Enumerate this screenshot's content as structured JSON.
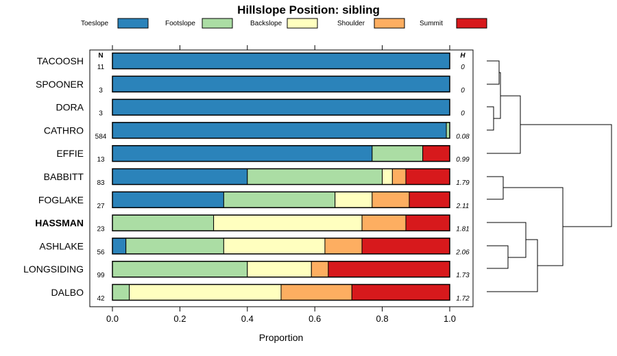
{
  "chart_data": {
    "type": "bar",
    "orientation": "horizontal",
    "stacked": true,
    "title": "Hillslope Position: sibling",
    "xlabel": "Proportion",
    "xlim": [
      0,
      1
    ],
    "xticks": [
      "0.0",
      "0.2",
      "0.4",
      "0.6",
      "0.8",
      "1.0"
    ],
    "xtick_values": [
      0,
      0.2,
      0.4,
      0.6,
      0.8,
      1.0
    ],
    "n_header": "N",
    "h_header": "H",
    "legend": [
      {
        "name": "Toeslope",
        "color": "#2b83ba"
      },
      {
        "name": "Footslope",
        "color": "#abdda4"
      },
      {
        "name": "Backslope",
        "color": "#ffffbf"
      },
      {
        "name": "Shoulder",
        "color": "#fdae61"
      },
      {
        "name": "Summit",
        "color": "#d7191c"
      }
    ],
    "rows": [
      {
        "label": "TACOOSH",
        "n": "11",
        "h": "0",
        "values": [
          1.0,
          0,
          0,
          0,
          0
        ]
      },
      {
        "label": "SPOONER",
        "n": "3",
        "h": "0",
        "values": [
          1.0,
          0,
          0,
          0,
          0
        ]
      },
      {
        "label": "DORA",
        "n": "3",
        "h": "0",
        "values": [
          1.0,
          0,
          0,
          0,
          0
        ]
      },
      {
        "label": "CATHRO",
        "n": "584",
        "h": "0.08",
        "values": [
          0.99,
          0.01,
          0,
          0,
          0
        ]
      },
      {
        "label": "EFFIE",
        "n": "13",
        "h": "0.99",
        "values": [
          0.77,
          0.15,
          0,
          0,
          0.08
        ]
      },
      {
        "label": "BABBITT",
        "n": "83",
        "h": "1.79",
        "values": [
          0.4,
          0.4,
          0.03,
          0.04,
          0.13
        ]
      },
      {
        "label": "FOGLAKE",
        "n": "27",
        "h": "2.11",
        "values": [
          0.33,
          0.33,
          0.11,
          0.11,
          0.12
        ]
      },
      {
        "label": "HASSMAN",
        "n": "23",
        "h": "1.81",
        "bold": true,
        "values": [
          0,
          0.3,
          0.44,
          0.13,
          0.13
        ]
      },
      {
        "label": "ASHLAKE",
        "n": "56",
        "h": "2.06",
        "values": [
          0.04,
          0.29,
          0.3,
          0.11,
          0.26
        ]
      },
      {
        "label": "LONGSIDING",
        "n": "99",
        "h": "1.73",
        "values": [
          0,
          0.4,
          0.19,
          0.05,
          0.36
        ]
      },
      {
        "label": "DALBO",
        "n": "42",
        "h": "1.72",
        "values": [
          0,
          0.05,
          0.45,
          0.21,
          0.29
        ]
      }
    ]
  }
}
